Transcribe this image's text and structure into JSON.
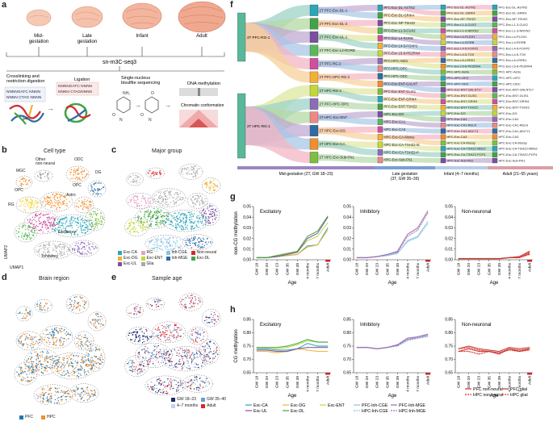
{
  "panel_labels": {
    "a": "a",
    "b": "b",
    "c": "c",
    "d": "d",
    "e": "e",
    "f": "f",
    "g": "g",
    "h": "h"
  },
  "panel_a": {
    "stages": [
      "Mid-\ngestation",
      "Late\ngestation",
      "Infant",
      "Adult"
    ],
    "method": "sn-m3C-seq3",
    "step1": "Crosslinking and\nrestriction digestion",
    "step2": "Ligation",
    "step3": "Single-nucleus\nbisulfite sequencing",
    "out1": "DNA methylation",
    "out2": "Chromatin conformation",
    "seq_top": "NNNNGATC NNNN",
    "seq_bot": "NNNN CTAG NNNN",
    "lig_top": "NNNNGATC NNNN",
    "lig_bot": "NNNN CTAGNNNN"
  },
  "panel_b": {
    "title": "Cell type",
    "labels": [
      "MGC",
      "Other\nnon-neural",
      "ODC",
      "DG",
      "OPC",
      "OPC",
      "Astro",
      "RG",
      "Excitatory",
      "Inhibitory"
    ],
    "axis_x": "UMAP1",
    "axis_y": "UMAP2"
  },
  "panel_c": {
    "title": "Major group",
    "legend": [
      {
        "label": "Exc-CA",
        "color": "#2aa7b8"
      },
      {
        "label": "RG",
        "color": "#e8a0c8"
      },
      {
        "label": "Inh-CGE",
        "color": "#8bc3e0"
      },
      {
        "label": "Non-neural",
        "color": "#d8262b"
      },
      {
        "label": "Exc-DG",
        "color": "#f2b134"
      },
      {
        "label": "Exc-ENT",
        "color": "#c5d63a"
      },
      {
        "label": "Inh-MGE",
        "color": "#2e6ca4"
      },
      {
        "label": "Exc-DL",
        "color": "#43a447"
      },
      {
        "label": "Exc-UL",
        "color": "#7b4fa0"
      },
      {
        "label": "Glia",
        "color": "#aaaaaa"
      }
    ]
  },
  "panel_d": {
    "title": "Brain region",
    "legend": [
      {
        "label": "PFC",
        "color": "#1f77b4"
      },
      {
        "label": "HPC",
        "color": "#f28e2b"
      }
    ]
  },
  "panel_e": {
    "title": "Sample age",
    "legend": [
      {
        "label": "GW 18–23",
        "color": "#1f2a6b"
      },
      {
        "label": "GW 35–40",
        "color": "#6e9bd1"
      },
      {
        "label": "4–7 months",
        "color": "#bfd3ea"
      },
      {
        "label": "Adult",
        "color": "#d8262b"
      }
    ]
  },
  "panel_f": {
    "roots": [
      "2T PFC-RG-1",
      "2T HPC-RG-1"
    ],
    "mid_col": [
      "2T PFC-Exc-DL-1",
      "2T PFC-Exc-DL-2",
      "2T PFC-Exc-UL-1",
      "2T PFC-Exc-L4-RORB",
      "2T PFC-RG-2",
      "2T PFC-HPC-RG-2",
      "2T HPC-RG-2",
      "2T PFC-HPC-OPC",
      "2T-HPC-Exc-ENT",
      "2T HPC-Exc-DG",
      "2T HPC-Exc-CA",
      "2T HPC-Exc-Sub-FN1"
    ],
    "late_col": [
      "PFC-Exc-DL-ASTN2",
      "PFC-Exc-DL-GRIK4",
      "PFC-Exc-NP-TSHZ2",
      "PFC-Exc-L1-3-CUX2",
      "PFC-Exc-L4-RORB",
      "PFC-Exc-L4-5-FOXP2",
      "PFC-Exc-L5-6-PDZRN4",
      "PFC-HPC-Astro",
      "PFC-HPC-OPC",
      "PFC-HPC-ODC",
      "PFC-Exc-ENT-GALNT",
      "PFC-Exc-ENT-GLIS1",
      "PFC-Exc-ENT-GRIK4",
      "PFC-Exc-ENT-TSHZ2",
      "HPC-Exc-DG",
      "HPC-Exc-CA1",
      "HPC-Exc-CA3",
      "HPC-Exc-CA-Mossy",
      "HPC-Exc-CA-TSHZ2-M",
      "HPC-Exc-CA-TSHZ2-P",
      "HPC-Exc-Sub-FN1"
    ],
    "infant_col": [
      "PFC-Exc-DL-ASTN2",
      "PFC-Exc-DL-GRIK4",
      "PFC-Exc-NP-TSHZ2",
      "PFC-Exc-L1-3-CUX2",
      "PFC-Exc-L1-3-NRXN2",
      "PFC-Exc-L4-PLCH1",
      "PFC-Exc-L4-RORB",
      "PFC-Exc-L4-5-FOXP2",
      "PFC-Exc-L4-5-TOX",
      "PFC-Exc-L6-LRRK1",
      "PFC-Exc-L5-6-PDZRN4",
      "PFC-HPC-Astro",
      "PFC-HPC-OPC",
      "PFC-HPC-ODC",
      "HPC-Exc-ENT-GALNT17",
      "HPC-Exc-ENT-GLIS1",
      "HPC-Exc-ENT-GRIK4",
      "HPC-Exc-ENT-TSHZ2",
      "HPC-Exc-DG",
      "HPC-Exc-CA1",
      "HPC-Exc-CA1-RELN",
      "HPC-Exc-CA1-ADCY1",
      "HPC-Exc-CA3",
      "HPC-Exc-CA-Mossy",
      "HPC-Exc-CA-TSHZ2-MBS2",
      "HPC-Exc-CA-TSHZ2-PCP4",
      "HPC-Exc-Sub-FN1"
    ],
    "adult_col": [
      "PFC-Exc-DL-ASTN2",
      "PFC-Exc-DL-GRIK4",
      "PFC-Exc-NP-TSHZ2",
      "PFC-Exc-L1-3-CUX2",
      "PFC-Exc-L1-3-NRXN2",
      "PFC-Exc-L4-PLCH1",
      "PFC-Exc-L4-RORB",
      "PFC-Exc-L4-5-FOXP2",
      "PFC-Exc-L4-5-TOX",
      "PFC-Exc-L6-LRRK1",
      "PFC-Exc-L5-6-PDZRN4",
      "PFC-HPC-Astro",
      "PFC-HPC-OPC",
      "PFC-HPC-ODC",
      "HPC-Exc-ENT-GALNT17",
      "HPC-Exc-ENT-GLIS1",
      "HPC-Exc-ENT-GRIK4",
      "HPC-Exc-ENT-TSHZ2",
      "HPC-Exc-DG",
      "HPC-Exc-CA1",
      "HPC-Exc-CA1-RELN",
      "HPC-Exc-CA1-ADCY1",
      "HPC-Exc-CA3",
      "HPC-Exc-CA-Mossy",
      "HPC-Exc-CA-TSHZ2-MBS2",
      "HPC-Exc-CA-TSHZ2-PCP4",
      "HPC-Exc-Sub-FN1"
    ],
    "axis": [
      {
        "label": "Mid-gestation (2T, GW 18–23)",
        "color": "#9c86c0"
      },
      {
        "label": "Late gestation\n(3T, GW 35–39)",
        "color": "#7aa0d4"
      },
      {
        "label": "Infant (4–7 months)",
        "color": "#b8cde7"
      },
      {
        "label": "Adult (21–55 years)",
        "color": "#d9a0a8"
      }
    ]
  },
  "chart_data": [
    {
      "type": "line",
      "panel": "g",
      "title": "Excitatory",
      "ylabel": "non-CG methylation",
      "xlabel": "Age",
      "ylim": [
        0,
        0.05
      ],
      "yticks": [
        0,
        0.01,
        0.02,
        0.03,
        0.04,
        0.05
      ],
      "categories": [
        "GW 18",
        "GW 20",
        "GW 23",
        "GW 35",
        "GW 39",
        "4 months",
        "7 months",
        "Adult"
      ],
      "series": [
        {
          "name": "Exc-CA",
          "color": "#2aa7b8",
          "values": [
            0.002,
            0.002,
            0.003,
            0.004,
            0.005,
            0.013,
            0.014,
            0.03
          ]
        },
        {
          "name": "Exc-DG",
          "color": "#f2b134",
          "values": [
            0.002,
            0.002,
            0.003,
            0.004,
            0.005,
            0.012,
            0.014,
            0.028
          ]
        },
        {
          "name": "Exc-ENT",
          "color": "#c5d63a",
          "values": [
            0.002,
            0.002,
            0.004,
            0.005,
            0.007,
            0.018,
            0.022,
            0.035
          ]
        },
        {
          "name": "Exc-UL",
          "color": "#7b4fa0",
          "values": [
            0.002,
            0.002,
            0.003,
            0.005,
            0.007,
            0.02,
            0.025,
            0.04
          ]
        },
        {
          "name": "Exc-DL",
          "color": "#43a447",
          "values": [
            0.002,
            0.002,
            0.004,
            0.006,
            0.008,
            0.022,
            0.027,
            0.041
          ]
        }
      ]
    },
    {
      "type": "line",
      "panel": "g",
      "title": "Inhibitory",
      "xlabel": "Age",
      "ylim": [
        0,
        0.05
      ],
      "yticks": [
        0,
        0.01,
        0.02,
        0.03,
        0.04,
        0.05
      ],
      "categories": [
        "GW 18",
        "GW 20",
        "GW 23",
        "GW 35",
        "GW 39",
        "4 months",
        "7 months",
        "Adult"
      ],
      "series": [
        {
          "name": "PFC-Inh-CGE",
          "color": "#8bc3e0",
          "values": [
            0.002,
            0.002,
            0.003,
            0.004,
            0.006,
            0.018,
            0.022,
            0.036
          ]
        },
        {
          "name": "HPC-Inh-CGE",
          "color": "#8bc3e0",
          "values": [
            0.002,
            0.002,
            0.003,
            0.004,
            0.006,
            0.017,
            0.021,
            0.034
          ]
        },
        {
          "name": "PFC-Inh-MGE",
          "color": "#a06cb0",
          "values": [
            0.002,
            0.002,
            0.003,
            0.005,
            0.008,
            0.024,
            0.03,
            0.046
          ]
        },
        {
          "name": "HPC-Inh-MGE",
          "color": "#a06cb0",
          "values": [
            0.002,
            0.002,
            0.003,
            0.005,
            0.007,
            0.022,
            0.028,
            0.044
          ]
        }
      ]
    },
    {
      "type": "line",
      "panel": "g",
      "title": "Non-neuronal",
      "xlabel": "Age",
      "ylim": [
        0,
        0.05
      ],
      "yticks": [
        0,
        0.01,
        0.02,
        0.03,
        0.04,
        0.05
      ],
      "categories": [
        "GW 18",
        "GW 20",
        "GW 23",
        "GW 35",
        "GW 39",
        "4 months",
        "7 months",
        "Adult"
      ],
      "series": [
        {
          "name": "PFC non-neural",
          "color": "#d8262b",
          "values": [
            0.001,
            0.001,
            0.001,
            0.001,
            0.001,
            0.002,
            0.002,
            0.006
          ]
        },
        {
          "name": "HPC non-neural",
          "color": "#d8262b",
          "values": [
            0.001,
            0.001,
            0.001,
            0.001,
            0.001,
            0.002,
            0.002,
            0.005
          ]
        },
        {
          "name": "PFC glial",
          "color": "#c0392b",
          "values": [
            0.001,
            0.001,
            0.001,
            0.001,
            0.001,
            0.002,
            0.003,
            0.008
          ]
        },
        {
          "name": "HPC glial",
          "color": "#c0392b",
          "values": [
            0.001,
            0.001,
            0.001,
            0.001,
            0.001,
            0.002,
            0.003,
            0.007
          ]
        }
      ]
    },
    {
      "type": "line",
      "panel": "h",
      "title": "Excitatory",
      "ylabel": "CG methylation",
      "xlabel": "Age",
      "ylim": [
        0.65,
        0.85
      ],
      "yticks": [
        0.65,
        0.7,
        0.75,
        0.8,
        0.85
      ],
      "categories": [
        "GW 18",
        "GW 20",
        "GW 23",
        "GW 35",
        "GW 39",
        "4 months",
        "7 months",
        "Adult"
      ],
      "series": [
        {
          "name": "Exc-CA",
          "color": "#2aa7b8",
          "values": [
            0.74,
            0.74,
            0.735,
            0.735,
            0.74,
            0.76,
            0.75,
            0.75
          ]
        },
        {
          "name": "Exc-DG",
          "color": "#f2b134",
          "values": [
            0.73,
            0.73,
            0.725,
            0.73,
            0.74,
            0.735,
            0.73,
            0.73
          ]
        },
        {
          "name": "Exc-ENT",
          "color": "#c5d63a",
          "values": [
            0.745,
            0.745,
            0.74,
            0.745,
            0.755,
            0.77,
            0.765,
            0.765
          ]
        },
        {
          "name": "Exc-UL",
          "color": "#7b4fa0",
          "values": [
            0.735,
            0.735,
            0.73,
            0.73,
            0.74,
            0.745,
            0.745,
            0.745
          ]
        },
        {
          "name": "Exc-DL",
          "color": "#43a447",
          "values": [
            0.745,
            0.745,
            0.745,
            0.75,
            0.76,
            0.775,
            0.765,
            0.765
          ]
        }
      ]
    },
    {
      "type": "line",
      "panel": "h",
      "title": "Inhibitory",
      "xlabel": "Age",
      "ylim": [
        0.65,
        0.85
      ],
      "yticks": [
        0.65,
        0.7,
        0.75,
        0.8,
        0.85
      ],
      "categories": [
        "GW 18",
        "GW 20",
        "GW 23",
        "GW 35",
        "GW 39",
        "4 months",
        "7 months",
        "Adult"
      ],
      "series": [
        {
          "name": "PFC-Inh-CGE",
          "color": "#8bc3e0",
          "values": [
            0.745,
            0.745,
            0.74,
            0.745,
            0.755,
            0.775,
            0.785,
            0.79
          ]
        },
        {
          "name": "HPC-Inh-CGE",
          "color": "#8bc3e0",
          "values": [
            0.745,
            0.745,
            0.74,
            0.745,
            0.75,
            0.77,
            0.78,
            0.785
          ]
        },
        {
          "name": "PFC-Inh-MGE",
          "color": "#a06cb0",
          "values": [
            0.745,
            0.745,
            0.74,
            0.745,
            0.755,
            0.78,
            0.785,
            0.795
          ]
        },
        {
          "name": "HPC-Inh-MGE",
          "color": "#a06cb0",
          "values": [
            0.745,
            0.745,
            0.74,
            0.745,
            0.752,
            0.775,
            0.78,
            0.79
          ]
        }
      ]
    },
    {
      "type": "line",
      "panel": "h",
      "title": "Non-neuronal",
      "xlabel": "Age",
      "ylim": [
        0.65,
        0.85
      ],
      "yticks": [
        0.65,
        0.7,
        0.75,
        0.8,
        0.85
      ],
      "categories": [
        "GW 18",
        "GW 20",
        "GW 23",
        "GW 35",
        "GW 39",
        "4 months",
        "7 months",
        "Adult"
      ],
      "series": [
        {
          "name": "PFC non-neural",
          "color": "#d8262b",
          "values": [
            0.73,
            0.74,
            0.73,
            0.73,
            0.72,
            0.74,
            0.73,
            0.74
          ]
        },
        {
          "name": "HPC non-neural",
          "color": "#d8262b",
          "values": [
            0.73,
            0.73,
            0.72,
            0.73,
            0.725,
            0.735,
            0.73,
            0.735
          ]
        },
        {
          "name": "PFC glial",
          "color": "#c0392b",
          "values": [
            0.74,
            0.75,
            0.74,
            0.735,
            0.73,
            0.745,
            0.74,
            0.745
          ]
        },
        {
          "name": "HPC glial",
          "color": "#c0392b",
          "values": [
            0.74,
            0.745,
            0.735,
            0.73,
            0.725,
            0.74,
            0.735,
            0.74
          ]
        }
      ]
    }
  ],
  "legend_g_h": {
    "exc": [
      {
        "label": "Exc-CA",
        "color": "#2aa7b8"
      },
      {
        "label": "Exc-DG",
        "color": "#f2b134"
      },
      {
        "label": "Exc-ENT",
        "color": "#c5d63a"
      },
      {
        "label": "Exc-UL",
        "color": "#7b4fa0"
      },
      {
        "label": "Exc-DL",
        "color": "#43a447"
      }
    ],
    "inh": [
      {
        "label": "PFC-Inh-CGE",
        "color": "#8bc3e0",
        "dash": false
      },
      {
        "label": "PFC-Inh-MGE",
        "color": "#a06cb0",
        "dash": false
      },
      {
        "label": "HPC-Inh-CGE",
        "color": "#8bc3e0",
        "dash": true
      },
      {
        "label": "HPC-Inh-MGE",
        "color": "#a06cb0",
        "dash": true
      }
    ],
    "nonneu": [
      {
        "label": "PFC non-neural",
        "color": "#d8262b",
        "dash": false
      },
      {
        "label": "PFC glial",
        "color": "#c0392b",
        "dash": false
      },
      {
        "label": "HPC non-neural",
        "color": "#d8262b",
        "dash": true
      },
      {
        "label": "HPC glial",
        "color": "#c0392b",
        "dash": true
      }
    ]
  }
}
